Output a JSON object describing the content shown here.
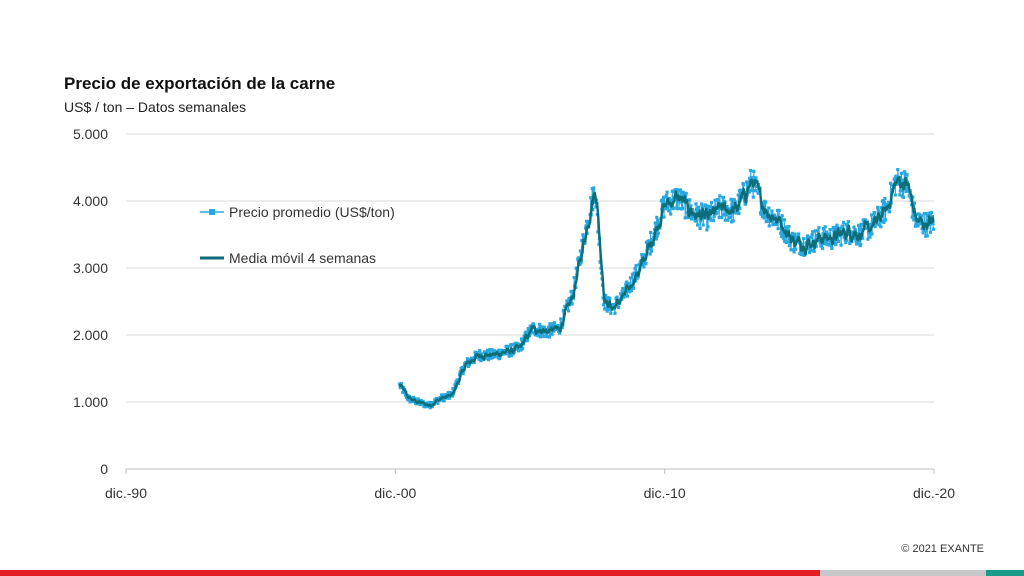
{
  "title": "Precio de exportación de la carne",
  "subtitle": "US$ / ton – Datos semanales",
  "copyright": "© 2021 EXANTE",
  "colors": {
    "price_series": "#29a8e0",
    "moving_average": "#0d6e7a",
    "gridline": "#d9d9d9",
    "bar_red": "#e31e24",
    "bar_gray": "#c8c8c8",
    "bar_teal": "#1a9a8a"
  },
  "chart_data": {
    "type": "line",
    "xlim": [
      "1990-12",
      "2020-12"
    ],
    "ylim": [
      0,
      5000
    ],
    "x_ticks": [
      {
        "label": "dic.-90",
        "year": 1990.92
      },
      {
        "label": "dic.-00",
        "year": 2000.92
      },
      {
        "label": "dic.-10",
        "year": 2010.92
      },
      {
        "label": "dic.-20",
        "year": 2020.92
      }
    ],
    "y_ticks": [
      {
        "label": "0",
        "value": 0
      },
      {
        "label": "1.000",
        "value": 1000
      },
      {
        "label": "2.000",
        "value": 2000
      },
      {
        "label": "3.000",
        "value": 3000
      },
      {
        "label": "4.000",
        "value": 4000
      },
      {
        "label": "5.000",
        "value": 5000
      }
    ],
    "grid": true,
    "legend_position": "upper-left inside plot",
    "series": [
      {
        "name": "Precio promedio (US$/ton)",
        "style": "line-with-markers",
        "frequency": "weekly",
        "x_start": "2001-02",
        "x_end": "2020-12",
        "approx_trajectory": [
          [
            "2001-02",
            1250
          ],
          [
            "2001-06",
            1050
          ],
          [
            "2001-10",
            1000
          ],
          [
            "2002-03",
            950
          ],
          [
            "2002-08",
            1050
          ],
          [
            "2003-01",
            1100
          ],
          [
            "2003-07",
            1550
          ],
          [
            "2004-01",
            1700
          ],
          [
            "2004-07",
            1700
          ],
          [
            "2005-01",
            1750
          ],
          [
            "2005-07",
            1800
          ],
          [
            "2006-01",
            2100
          ],
          [
            "2006-07",
            2050
          ],
          [
            "2007-01",
            2100
          ],
          [
            "2007-07",
            2600
          ],
          [
            "2008-01",
            3600
          ],
          [
            "2008-05",
            4200
          ],
          [
            "2008-09",
            2500
          ],
          [
            "2009-01",
            2400
          ],
          [
            "2009-06",
            2600
          ],
          [
            "2010-01",
            3000
          ],
          [
            "2010-06",
            3400
          ],
          [
            "2010-12",
            3950
          ],
          [
            "2011-06",
            4050
          ],
          [
            "2012-01",
            3800
          ],
          [
            "2012-07",
            3750
          ],
          [
            "2013-01",
            3900
          ],
          [
            "2013-07",
            3850
          ],
          [
            "2014-03",
            4300
          ],
          [
            "2014-09",
            3850
          ],
          [
            "2015-03",
            3700
          ],
          [
            "2015-09",
            3400
          ],
          [
            "2016-03",
            3350
          ],
          [
            "2016-09",
            3450
          ],
          [
            "2017-03",
            3450
          ],
          [
            "2017-09",
            3550
          ],
          [
            "2018-03",
            3500
          ],
          [
            "2018-09",
            3650
          ],
          [
            "2019-03",
            3900
          ],
          [
            "2019-07",
            4300
          ],
          [
            "2019-12",
            4250
          ],
          [
            "2020-04",
            3700
          ],
          [
            "2020-09",
            3650
          ],
          [
            "2020-12",
            3700
          ]
        ]
      },
      {
        "name": "Media móvil 4 semanas",
        "style": "line",
        "frequency": "weekly",
        "x_start": "2001-02",
        "x_end": "2020-12"
      }
    ]
  }
}
